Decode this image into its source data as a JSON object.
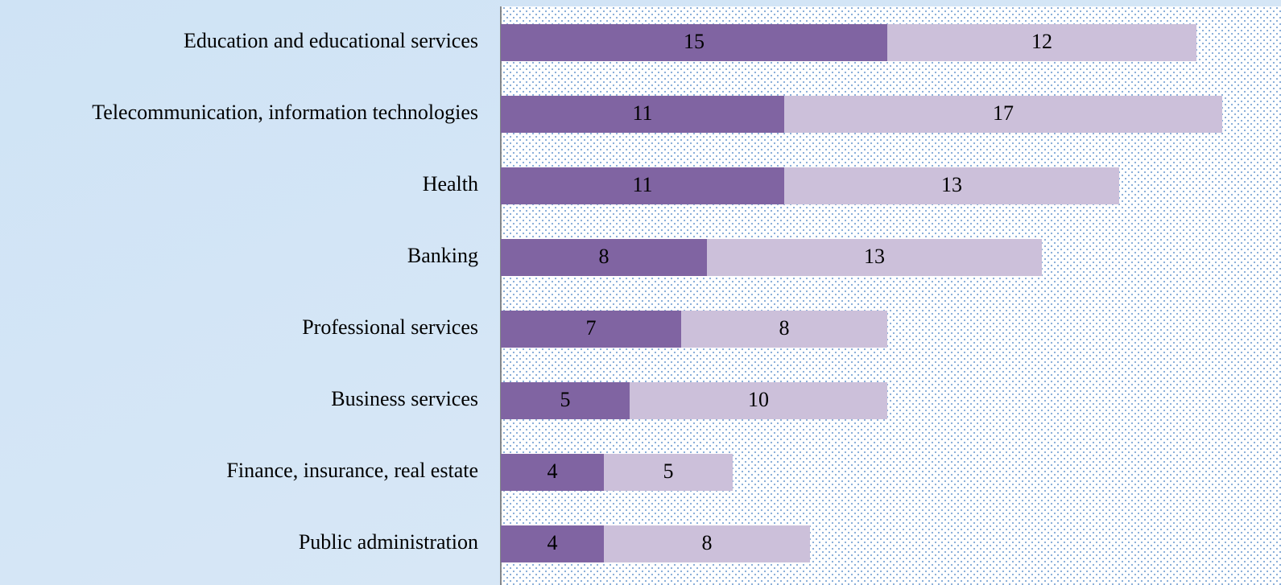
{
  "chart_data": {
    "type": "bar",
    "orientation": "horizontal",
    "stacked": true,
    "categories": [
      "Education and educational services",
      "Telecommunication, information technologies",
      "Health",
      "Banking",
      "Professional services",
      "Business services",
      "Finance, insurance, real estate",
      "Public administration"
    ],
    "series": [
      {
        "color": "#8064a2",
        "values": [
          15,
          11,
          11,
          8,
          7,
          5,
          4,
          4
        ]
      },
      {
        "color": "#ccc0da",
        "values": [
          12,
          17,
          13,
          13,
          8,
          10,
          5,
          8
        ]
      }
    ]
  }
}
